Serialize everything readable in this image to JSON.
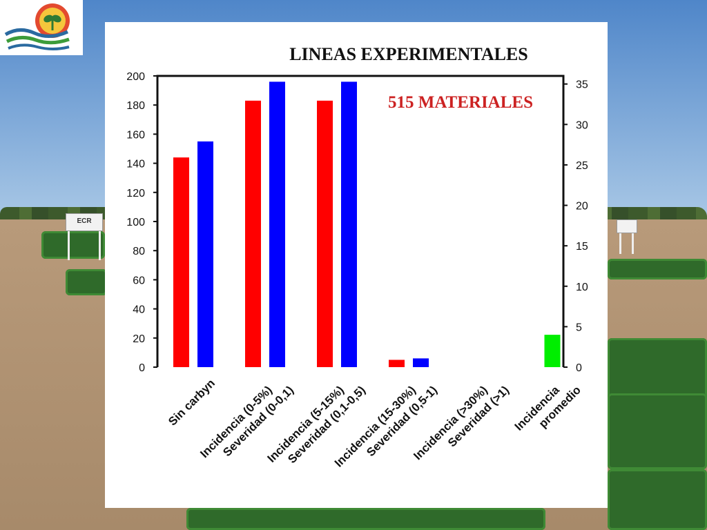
{
  "colors": {
    "red_series": "#ff0000",
    "blue_series": "#0000ff",
    "green_series": "#00ee00",
    "annotation": "#cc2222"
  },
  "logo": {
    "icon": "sprout-sun-waves-logo-icon"
  },
  "background": {
    "signs": [
      "ECR"
    ]
  },
  "chart_data": {
    "type": "bar",
    "title": "LINEAS EXPERIMENTALES",
    "annotation": "515 MATERIALES",
    "categories": [
      [
        "Sin carbyn"
      ],
      [
        "Incidencia (0-5%)",
        "Severidad (0-0,1)"
      ],
      [
        "Incidencia (5-15%)",
        "Severidad (0,1-0,5)"
      ],
      [
        "Incidencia (15-30%)",
        "Severidad (0,5-1)"
      ],
      [
        "Incidencia (>30%)",
        "Severidad (>1)"
      ],
      [
        "Incidencia",
        "promedio"
      ]
    ],
    "series": [
      {
        "color": "red",
        "axis": "left",
        "values": [
          144,
          183,
          183,
          5,
          0,
          null
        ]
      },
      {
        "color": "blue",
        "axis": "left",
        "values": [
          155,
          196,
          196,
          6,
          0,
          null
        ]
      },
      {
        "color": "green",
        "axis": "right",
        "values": [
          null,
          null,
          null,
          null,
          null,
          4
        ]
      }
    ],
    "y_left": {
      "ylim": [
        0,
        200
      ],
      "ticks": [
        0,
        20,
        40,
        60,
        80,
        100,
        120,
        140,
        160,
        180,
        200
      ]
    },
    "y_right": {
      "ylim": [
        0,
        36
      ],
      "ticks": [
        0,
        5,
        10,
        15,
        20,
        25,
        30,
        35
      ]
    },
    "xlabel": "",
    "ylabel": "",
    "grid": false,
    "legend": "none"
  }
}
